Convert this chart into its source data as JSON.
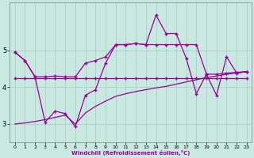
{
  "xlabel": "Windchill (Refroidissement éolien,°C)",
  "background_color": "#c8e8e0",
  "grid_color": "#a0ccc0",
  "line_color": "#990099",
  "xlim": [
    -0.5,
    23.5
  ],
  "ylim": [
    2.5,
    6.3
  ],
  "x_ticks": [
    0,
    1,
    2,
    3,
    4,
    5,
    6,
    7,
    8,
    9,
    10,
    11,
    12,
    13,
    14,
    15,
    16,
    17,
    18,
    19,
    20,
    21,
    22,
    23
  ],
  "y_ticks": [
    3,
    4,
    5
  ],
  "ylabel_vals": [
    "3",
    "4",
    "5"
  ],
  "line_horiz_x": [
    0,
    1,
    2,
    3,
    4,
    5,
    6,
    7,
    8,
    9,
    10,
    11,
    12,
    13,
    14,
    15,
    16,
    17,
    18,
    19,
    20,
    21,
    22,
    23
  ],
  "line_horiz_y": [
    4.25,
    4.25,
    4.25,
    4.25,
    4.25,
    4.25,
    4.25,
    4.25,
    4.25,
    4.25,
    4.25,
    4.25,
    4.25,
    4.25,
    4.25,
    4.25,
    4.25,
    4.25,
    4.25,
    4.25,
    4.25,
    4.25,
    4.25,
    4.25
  ],
  "line_jagged_x": [
    0,
    1,
    2,
    3,
    4,
    5,
    6,
    7,
    8,
    9,
    10,
    11,
    12,
    13,
    14,
    15,
    16,
    17,
    18,
    19,
    20,
    21,
    22,
    23
  ],
  "line_jagged_y": [
    4.95,
    4.72,
    4.28,
    3.05,
    3.35,
    3.28,
    2.93,
    3.78,
    3.93,
    4.65,
    5.15,
    5.15,
    5.18,
    5.15,
    5.95,
    5.45,
    5.45,
    4.78,
    3.82,
    4.35,
    3.78,
    4.82,
    4.38,
    4.42
  ],
  "line_diag_x": [
    0,
    1,
    2,
    3,
    4,
    5,
    6,
    7,
    8,
    9,
    10,
    11,
    12,
    13,
    14,
    15,
    16,
    17,
    18,
    19,
    20,
    21,
    22,
    23
  ],
  "line_diag_y": [
    3.0,
    3.03,
    3.07,
    3.12,
    3.18,
    3.24,
    3.0,
    3.3,
    3.48,
    3.62,
    3.75,
    3.82,
    3.88,
    3.93,
    3.98,
    4.02,
    4.08,
    4.14,
    4.2,
    4.26,
    4.3,
    4.35,
    4.38,
    4.42
  ],
  "line_top_x": [
    0,
    1,
    2,
    3,
    4,
    5,
    6,
    7,
    8,
    9,
    10,
    11,
    12,
    13,
    14,
    15,
    16,
    17,
    18,
    19,
    20,
    21,
    22,
    23
  ],
  "line_top_y": [
    4.95,
    4.72,
    4.28,
    4.28,
    4.3,
    4.28,
    4.28,
    4.65,
    4.72,
    4.82,
    5.15,
    5.15,
    5.18,
    5.15,
    5.15,
    5.15,
    5.15,
    5.15,
    5.15,
    4.35,
    4.35,
    4.38,
    4.4,
    4.42
  ]
}
